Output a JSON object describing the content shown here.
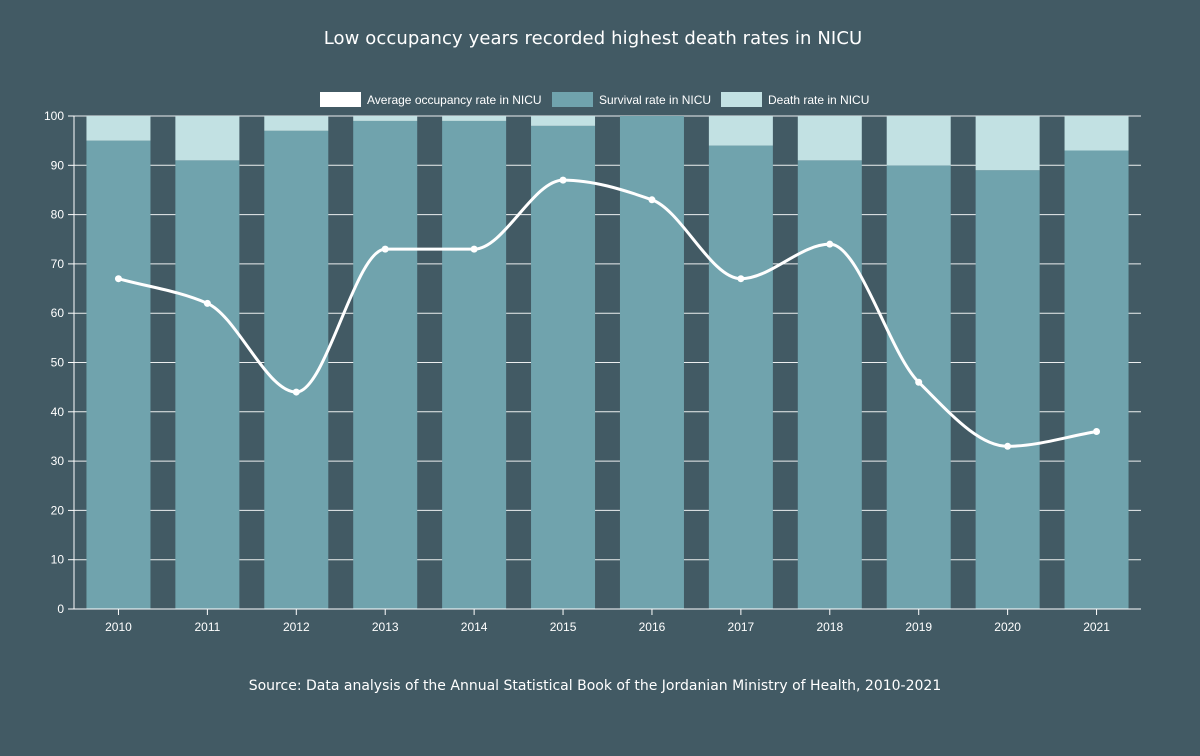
{
  "chart_data": {
    "type": "bar",
    "stacked": true,
    "title": "Low occupancy years recorded highest death rates in NICU",
    "categories": [
      "2010",
      "2011",
      "2012",
      "2013",
      "2014",
      "2015",
      "2016",
      "2017",
      "2018",
      "2019",
      "2020",
      "2021"
    ],
    "series": [
      {
        "name": "Survival rate in NICU",
        "type": "bar",
        "color": "#70a3ad",
        "values": [
          95,
          91,
          97,
          99,
          99,
          98,
          100,
          94,
          91,
          90,
          89,
          93
        ]
      },
      {
        "name": "Death rate in NICU",
        "type": "bar",
        "color": "#c2e1e3",
        "values": [
          5,
          9,
          3,
          1,
          1,
          2,
          0,
          6,
          9,
          10,
          11,
          7
        ]
      },
      {
        "name": "Average occupancy rate in NICU",
        "type": "line",
        "color": "#ffffff",
        "values": [
          67,
          62,
          44,
          73,
          73,
          87,
          83,
          67,
          74,
          46,
          33,
          36
        ]
      }
    ],
    "legend_order": [
      "Average occupancy rate in NICU",
      "Survival rate in NICU",
      "Death rate in NICU"
    ],
    "ylim": [
      0,
      100
    ],
    "yticks": [
      0,
      10,
      20,
      30,
      40,
      50,
      60,
      70,
      80,
      90,
      100
    ],
    "grid": true,
    "legend_position": "top-center",
    "xlabel": "",
    "ylabel": ""
  },
  "source": "Source: Data analysis of the Annual Statistical Book of the Jordanian Ministry of Health, 2010-2021",
  "colors": {
    "background": "#425a64",
    "survival": "#70a3ad",
    "death": "#c2e1e3",
    "line": "#ffffff",
    "grid": "#ffffff"
  }
}
